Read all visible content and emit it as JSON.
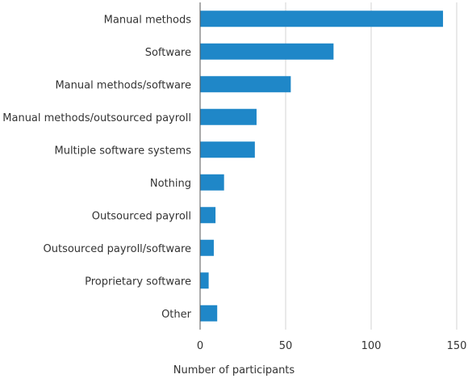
{
  "chart_data": {
    "type": "bar",
    "orientation": "horizontal",
    "categories": [
      "Manual methods",
      "Software",
      "Manual methods/software",
      "Manual methods/outsourced payroll",
      "Multiple software systems",
      "Nothing",
      "Outsourced payroll",
      "Outsourced payroll/software",
      "Proprietary software",
      "Other"
    ],
    "values": [
      142,
      78,
      53,
      33,
      32,
      14,
      9,
      8,
      5,
      10
    ],
    "xlabel": "Number of participants",
    "ylabel": "",
    "xlim": [
      0,
      150
    ],
    "xticks": [
      0,
      50,
      100,
      150
    ],
    "grid": "vertical",
    "legend": "none",
    "colors": {
      "bar": "#1f87c8",
      "grid": "#d3d3d3",
      "axis": "#555555"
    }
  }
}
